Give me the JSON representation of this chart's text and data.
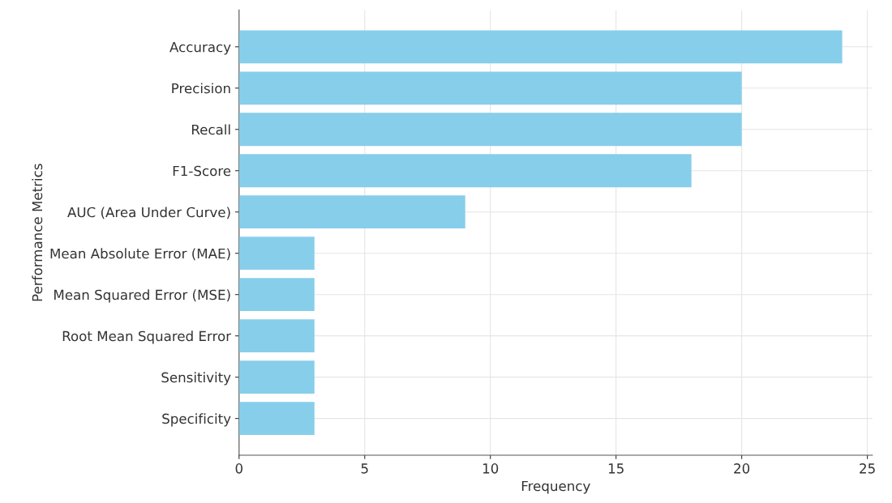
{
  "chart_data": {
    "type": "bar",
    "orientation": "horizontal",
    "xlabel": "Frequency",
    "ylabel": "Performance Metrics",
    "categories": [
      "Accuracy",
      "Precision",
      "Recall",
      "F1-Score",
      "AUC (Area Under Curve)",
      "Mean Absolute Error (MAE)",
      "Mean Squared Error (MSE)",
      "Root Mean Squared Error",
      "Sensitivity",
      "Specificity"
    ],
    "values": [
      24,
      20,
      20,
      18,
      9,
      3,
      3,
      3,
      3,
      3
    ],
    "color": "#87ceeb",
    "xlim": [
      0,
      25.2
    ],
    "xticks": [
      0,
      5,
      10,
      15,
      20,
      25
    ],
    "grid": true
  }
}
